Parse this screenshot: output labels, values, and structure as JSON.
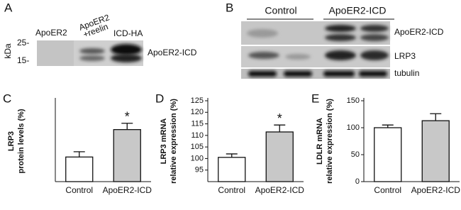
{
  "panel_a": {
    "letter": "A",
    "lanes": [
      "ApoER2",
      [
        "ApoER2",
        "+reelin"
      ],
      "ICD-HA"
    ],
    "unit": "kDa",
    "markers": [
      "25-",
      "15-"
    ],
    "band_label": "ApoER2-ICD"
  },
  "panel_b": {
    "letter": "B",
    "groups": [
      "Control",
      "ApoER2-ICD"
    ],
    "rows": [
      "ApoER2-ICD",
      "LRP3",
      "tubulin"
    ]
  },
  "chart_data": [
    {
      "type": "bar",
      "letter": "C",
      "ylabel": [
        "LRP3",
        "protein levels (%)"
      ],
      "categories": [
        "Control",
        "ApoER2-ICD"
      ],
      "values": [
        100,
        178
      ],
      "errors": [
        15,
        18
      ],
      "colors": [
        "#ffffff",
        "#c8c8c8"
      ],
      "significance": [
        null,
        "*"
      ],
      "ylim": [
        30,
        260
      ]
    },
    {
      "type": "bar",
      "letter": "D",
      "ylabel": [
        "LRP3 mRNA",
        "relative expression (%)"
      ],
      "categories": [
        "Control",
        "ApoER2-ICD"
      ],
      "values": [
        100.5,
        111.5
      ],
      "errors": [
        1.5,
        3
      ],
      "colors": [
        "#ffffff",
        "#c8c8c8"
      ],
      "significance": [
        null,
        "*"
      ],
      "ylim": [
        90,
        125
      ],
      "yticks": [
        95,
        100,
        105,
        110,
        115,
        120,
        125
      ]
    },
    {
      "type": "bar",
      "letter": "E",
      "ylabel": [
        "LDLR mRNA",
        "relative expression (%)"
      ],
      "categories": [
        "Control",
        "ApoER2-ICD"
      ],
      "values": [
        100,
        113
      ],
      "errors": [
        5,
        13
      ],
      "colors": [
        "#ffffff",
        "#c8c8c8"
      ],
      "significance": [
        null,
        null
      ],
      "ylim": [
        0,
        150
      ],
      "yticks": [
        0,
        50,
        100,
        150
      ]
    }
  ]
}
